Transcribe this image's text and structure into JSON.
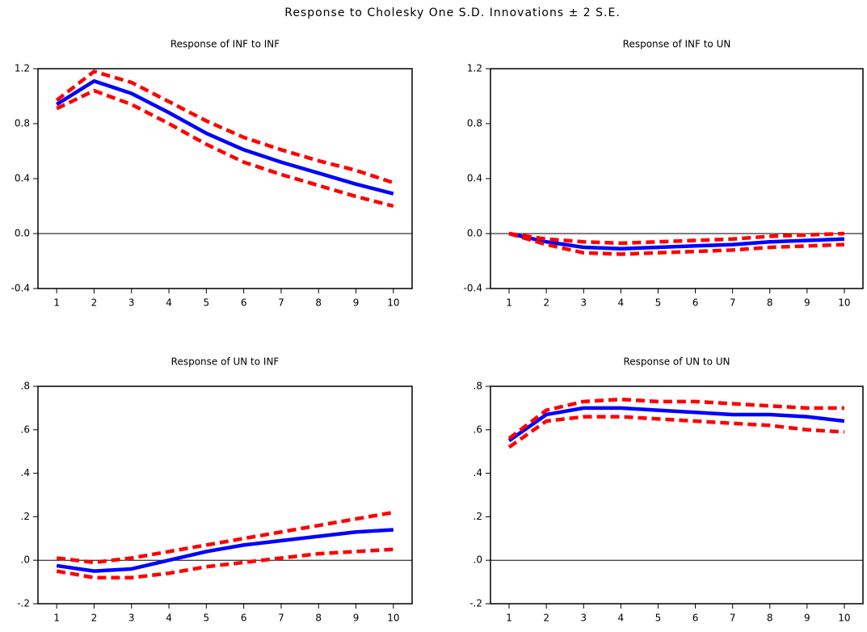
{
  "title": "Response to Cholesky One S.D. Innovations ± 2 S.E.",
  "chart_data": [
    {
      "type": "line",
      "title": "Response of INF to INF",
      "x": [
        1,
        2,
        3,
        4,
        5,
        6,
        7,
        8,
        9,
        10
      ],
      "xlim": [
        0.5,
        10.5
      ],
      "xticks": [
        1,
        2,
        3,
        4,
        5,
        6,
        7,
        8,
        9,
        10
      ],
      "ylim": [
        -0.4,
        1.2
      ],
      "yticks": [
        1.2,
        0.8,
        0.4,
        {
          "value": 0,
          "label": "0.0"
        },
        -0.4
      ],
      "series": [
        {
          "color": "#0000ff",
          "values": [
            0.94,
            1.11,
            1.02,
            0.88,
            0.73,
            0.61,
            0.52,
            0.44,
            0.36,
            0.29
          ]
        },
        {
          "color": "#ff0000",
          "values": [
            0.97,
            1.18,
            1.1,
            0.96,
            0.82,
            0.7,
            0.61,
            0.53,
            0.46,
            0.37
          ]
        },
        {
          "color": "#ff0000",
          "values": [
            0.91,
            1.04,
            0.94,
            0.8,
            0.65,
            0.52,
            0.43,
            0.35,
            0.27,
            0.2
          ]
        }
      ]
    },
    {
      "type": "line",
      "title": "Response of INF to UN",
      "x": [
        1,
        2,
        3,
        4,
        5,
        6,
        7,
        8,
        9,
        10
      ],
      "xlim": [
        0.5,
        10.5
      ],
      "xticks": [
        1,
        2,
        3,
        4,
        5,
        6,
        7,
        8,
        9,
        10
      ],
      "ylim": [
        -0.4,
        1.2
      ],
      "yticks": [
        1.2,
        0.8,
        0.4,
        {
          "value": 0,
          "label": "0.0"
        },
        -0.4
      ],
      "series": [
        {
          "color": "#0000ff",
          "values": [
            0,
            -0.06,
            -0.1,
            -0.11,
            -0.1,
            -0.09,
            -0.08,
            -0.06,
            -0.05,
            -0.04
          ]
        },
        {
          "color": "#ff0000",
          "values": [
            0,
            -0.04,
            -0.06,
            -0.07,
            -0.06,
            -0.05,
            -0.04,
            -0.02,
            -0.01,
            0.0
          ]
        },
        {
          "color": "#ff0000",
          "values": [
            0,
            -0.08,
            -0.14,
            -0.15,
            -0.14,
            -0.13,
            -0.12,
            -0.1,
            -0.09,
            -0.08
          ]
        }
      ]
    },
    {
      "type": "line",
      "title": "Response of UN to INF",
      "x": [
        1,
        2,
        3,
        4,
        5,
        6,
        7,
        8,
        9,
        10
      ],
      "xlim": [
        0.5,
        10.5
      ],
      "xticks": [
        1,
        2,
        3,
        4,
        5,
        6,
        7,
        8,
        9,
        10
      ],
      "ylim": [
        -0.2,
        0.8
      ],
      "yticks": [
        {
          "value": 0.8,
          "label": ".8"
        },
        {
          "value": 0.6,
          "label": ".6"
        },
        {
          "value": 0.4,
          "label": ".4"
        },
        {
          "value": 0.2,
          "label": ".2"
        },
        {
          "value": 0,
          "label": ".0"
        },
        {
          "value": -0.2,
          "label": "-.2"
        }
      ],
      "series": [
        {
          "color": "#0000ff",
          "values": [
            -0.025,
            -0.05,
            -0.04,
            0.0,
            0.04,
            0.07,
            0.09,
            0.11,
            0.13,
            0.14
          ]
        },
        {
          "color": "#ff0000",
          "values": [
            0.01,
            -0.01,
            0.01,
            0.04,
            0.07,
            0.1,
            0.13,
            0.16,
            0.19,
            0.22
          ]
        },
        {
          "color": "#ff0000",
          "values": [
            -0.05,
            -0.08,
            -0.08,
            -0.06,
            -0.03,
            -0.01,
            0.01,
            0.03,
            0.04,
            0.05
          ]
        }
      ]
    },
    {
      "type": "line",
      "title": "Response of UN to UN",
      "x": [
        1,
        2,
        3,
        4,
        5,
        6,
        7,
        8,
        9,
        10
      ],
      "xlim": [
        0.5,
        10.5
      ],
      "xticks": [
        1,
        2,
        3,
        4,
        5,
        6,
        7,
        8,
        9,
        10
      ],
      "ylim": [
        -0.2,
        0.8
      ],
      "yticks": [
        {
          "value": 0.8,
          "label": ".8"
        },
        {
          "value": 0.6,
          "label": ".6"
        },
        {
          "value": 0.4,
          "label": ".4"
        },
        {
          "value": 0.2,
          "label": ".2"
        },
        {
          "value": 0,
          "label": ".0"
        },
        {
          "value": -0.2,
          "label": "-.2"
        }
      ],
      "series": [
        {
          "color": "#0000ff",
          "values": [
            0.55,
            0.67,
            0.7,
            0.7,
            0.69,
            0.68,
            0.67,
            0.67,
            0.66,
            0.64
          ]
        },
        {
          "color": "#ff0000",
          "values": [
            0.56,
            0.69,
            0.73,
            0.74,
            0.73,
            0.73,
            0.72,
            0.71,
            0.7,
            0.7
          ]
        },
        {
          "color": "#ff0000",
          "values": [
            0.52,
            0.64,
            0.66,
            0.66,
            0.65,
            0.64,
            0.63,
            0.62,
            0.6,
            0.59
          ]
        }
      ]
    }
  ]
}
